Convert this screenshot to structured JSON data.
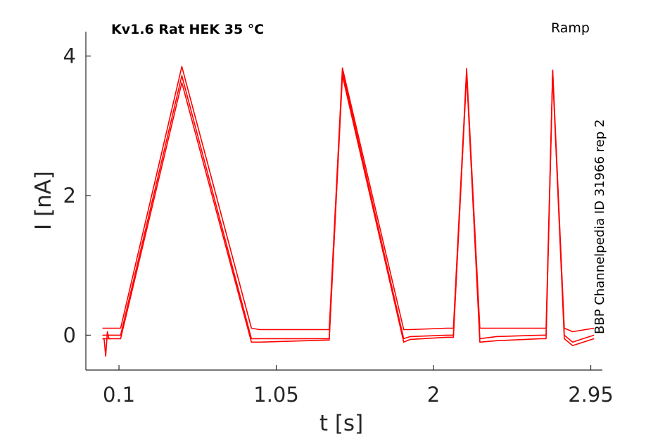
{
  "chart_data": {
    "type": "line",
    "title": "Kv1.6  Rat  HEK  35 °C",
    "protocol_label": "Ramp",
    "side_label": "BBP Channelpedia ID 31966 rep 2",
    "xlabel": "t [s]",
    "ylabel": "I [nA]",
    "xlim": [
      -0.1,
      3.02
    ],
    "ylim": [
      -0.5,
      4.35
    ],
    "x_ticks": [
      0.1,
      1.05,
      2,
      2.95
    ],
    "x_tick_labels": [
      "0.1",
      "1.05",
      "2",
      "2.95"
    ],
    "y_ticks": [
      0,
      2,
      4
    ],
    "y_tick_labels": [
      "0",
      "2",
      "4"
    ],
    "grid": false,
    "legend": false,
    "line_color": "#ff0000",
    "axis_color": "#262626",
    "series": [
      {
        "x": [
          0.0,
          0.09,
          0.11,
          0.48,
          0.9,
          0.95,
          1.35,
          1.37,
          1.45,
          1.82,
          1.86,
          2.08,
          2.12,
          2.2,
          2.28,
          2.38,
          2.65,
          2.68,
          2.72,
          2.79,
          2.84,
          2.97
        ],
        "y": [
          0.1,
          0.1,
          0.1,
          3.85,
          0.1,
          0.08,
          0.08,
          0.08,
          3.83,
          0.08,
          0.08,
          0.1,
          0.1,
          3.82,
          0.1,
          0.1,
          0.1,
          0.1,
          3.8,
          0.1,
          0.05,
          0.1
        ]
      },
      {
        "x": [
          0.0,
          0.09,
          0.11,
          0.48,
          0.9,
          0.95,
          1.35,
          1.37,
          1.45,
          1.82,
          1.86,
          2.08,
          2.12,
          2.2,
          2.28,
          2.38,
          2.65,
          2.68,
          2.72,
          2.79,
          2.84,
          2.97
        ],
        "y": [
          0.0,
          0.0,
          0.0,
          3.72,
          -0.05,
          -0.05,
          -0.05,
          -0.05,
          3.78,
          -0.05,
          -0.02,
          0.0,
          0.0,
          3.78,
          -0.05,
          -0.02,
          0.0,
          0.0,
          3.78,
          0.0,
          -0.1,
          0.0
        ]
      },
      {
        "x": [
          0.0,
          0.09,
          0.11,
          0.48,
          0.9,
          0.95,
          1.35,
          1.37,
          1.45,
          1.82,
          1.86,
          2.08,
          2.12,
          2.2,
          2.28,
          2.38,
          2.65,
          2.68,
          2.72,
          2.79,
          2.84,
          2.97
        ],
        "y": [
          -0.05,
          -0.05,
          -0.05,
          3.62,
          -0.1,
          -0.1,
          -0.07,
          -0.07,
          3.72,
          -0.1,
          -0.06,
          -0.03,
          -0.03,
          3.74,
          -0.1,
          -0.08,
          -0.05,
          -0.05,
          3.74,
          -0.05,
          -0.15,
          -0.05
        ]
      }
    ],
    "artifact": {
      "x": [
        0.0,
        0.01,
        0.02,
        0.03,
        0.04,
        0.05
      ],
      "y": [
        -0.05,
        -0.05,
        -0.3,
        0.05,
        -0.05,
        -0.05
      ]
    }
  }
}
